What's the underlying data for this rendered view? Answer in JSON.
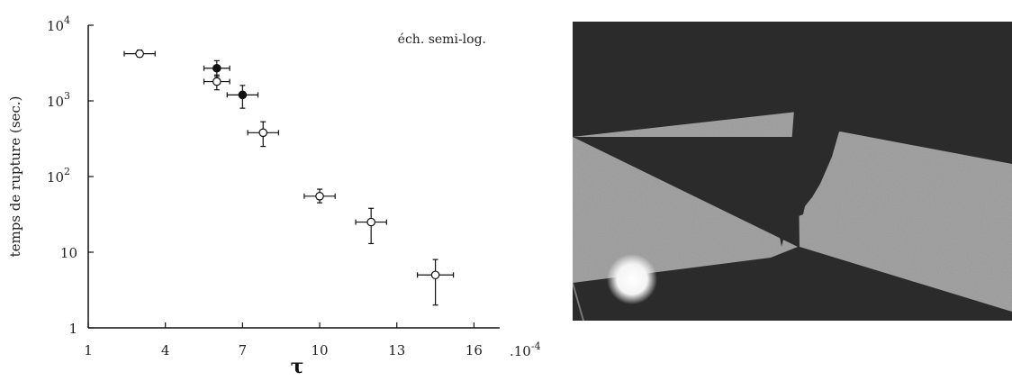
{
  "chart_data": {
    "type": "scatter",
    "title": "",
    "annotation": "éch. semi-log.",
    "xlabel": "τ",
    "ylabel": "temps de rupture (sec.)",
    "xlim": [
      1,
      16
    ],
    "ylim": [
      1,
      10000
    ],
    "y_scale": "log",
    "grid": false,
    "x_ticks": [
      "1",
      "4",
      "7",
      "10",
      "13",
      "16"
    ],
    "x_scale_label": ".10",
    "x_scale_exponent": "-4",
    "y_ticks": [
      {
        "value": 1,
        "base": "1",
        "exp": ""
      },
      {
        "value": 10,
        "base": "10",
        "exp": ""
      },
      {
        "value": 100,
        "base": "10",
        "exp": "2"
      },
      {
        "value": 1000,
        "base": "10",
        "exp": "3"
      },
      {
        "value": 10000,
        "base": "10",
        "exp": "4"
      }
    ],
    "series": [
      {
        "marker": "open-circle",
        "points": [
          {
            "x": 3.0,
            "y": 4200,
            "xerr": 0.6,
            "ylo": 3800,
            "yhi": 4700
          },
          {
            "x": 6.0,
            "y": 1800,
            "xerr": 0.5,
            "ylo": 1400,
            "yhi": 2200
          },
          {
            "x": 7.8,
            "y": 380,
            "xerr": 0.6,
            "ylo": 250,
            "yhi": 530
          },
          {
            "x": 10.0,
            "y": 55,
            "xerr": 0.6,
            "ylo": 45,
            "yhi": 68
          },
          {
            "x": 12.0,
            "y": 25,
            "xerr": 0.6,
            "ylo": 13,
            "yhi": 38
          },
          {
            "x": 14.5,
            "y": 5,
            "xerr": 0.7,
            "ylo": 2,
            "yhi": 8
          }
        ]
      },
      {
        "marker": "filled-circle",
        "points": [
          {
            "x": 6.0,
            "y": 2700,
            "xerr": 0.5,
            "ylo": 2100,
            "yhi": 3400
          },
          {
            "x": 7.0,
            "y": 1200,
            "xerr": 0.6,
            "ylo": 800,
            "yhi": 1600
          }
        ]
      }
    ]
  },
  "photo": {
    "background_color": "#2b2b2b",
    "plate_color": "#9e9e9e",
    "crack_color": "#2b2b2b",
    "glare_color": "#ffffff"
  }
}
